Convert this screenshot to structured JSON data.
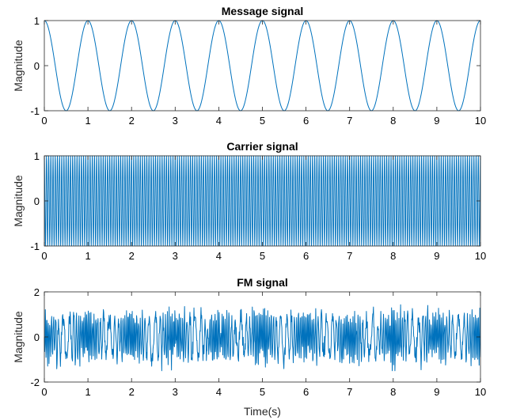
{
  "chart_data": [
    {
      "type": "line",
      "title": "Message signal",
      "xlabel": "",
      "ylabel": "Magnitude",
      "xlim": [
        0,
        10
      ],
      "ylim": [
        -1,
        1
      ],
      "xticks": [
        0,
        1,
        2,
        3,
        4,
        5,
        6,
        7,
        8,
        9,
        10
      ],
      "yticks": [
        -1,
        0,
        1
      ],
      "grid": false,
      "line_color": "#0072bd",
      "series": [
        {
          "function": "cos(2*pi*1*t)",
          "frequency_hz": 1,
          "amplitude": 1
        }
      ]
    },
    {
      "type": "line",
      "title": "Carrier signal",
      "xlabel": "",
      "ylabel": "Magnitude",
      "xlim": [
        0,
        10
      ],
      "ylim": [
        -1,
        1
      ],
      "xticks": [
        0,
        1,
        2,
        3,
        4,
        5,
        6,
        7,
        8,
        9,
        10
      ],
      "yticks": [
        -1,
        0,
        1
      ],
      "grid": false,
      "line_color": "#0072bd",
      "series": [
        {
          "function": "cos(2*pi*fc*t)",
          "frequency_hz": 20,
          "amplitude": 1
        }
      ]
    },
    {
      "type": "line",
      "title": "FM signal",
      "xlabel": "Time(s)",
      "ylabel": "Magnitude",
      "xlim": [
        0,
        10
      ],
      "ylim": [
        -2,
        2
      ],
      "xticks": [
        0,
        1,
        2,
        3,
        4,
        5,
        6,
        7,
        8,
        9,
        10
      ],
      "yticks": [
        -2,
        0,
        2
      ],
      "grid": false,
      "line_color": "#0072bd",
      "series": [
        {
          "function": "noisy FM waveform",
          "amplitude_range": [
            -1.5,
            1.5
          ]
        }
      ]
    }
  ]
}
